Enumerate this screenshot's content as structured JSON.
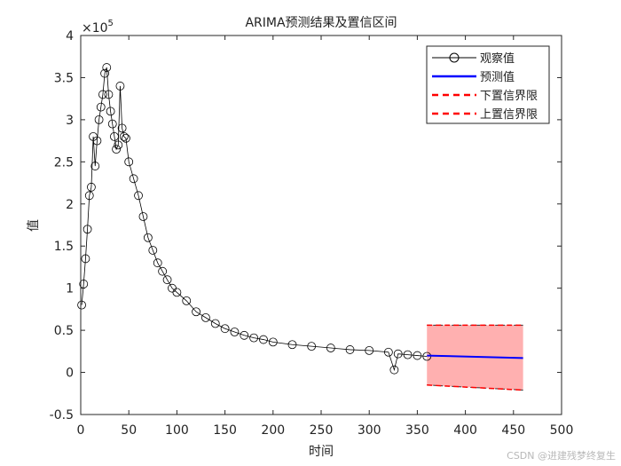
{
  "chart_data": {
    "type": "line",
    "title": "ARIMA预测结果及置信区间",
    "xlabel": "时间",
    "ylabel": "值",
    "y_exponent_label": "×10",
    "y_exponent_power": "5",
    "xlim": [
      0,
      500
    ],
    "ylim": [
      -0.5,
      4
    ],
    "xticks": [
      0,
      50,
      100,
      150,
      200,
      250,
      300,
      350,
      400,
      450,
      500
    ],
    "yticks": [
      -0.5,
      0,
      0.5,
      1,
      1.5,
      2,
      2.5,
      3,
      3.5,
      4
    ],
    "x_tick_labels": [
      "0",
      "50",
      "100",
      "150",
      "200",
      "250",
      "300",
      "350",
      "400",
      "450",
      "500"
    ],
    "y_tick_labels": [
      "-0.5",
      "0",
      "0.5",
      "1",
      "1.5",
      "2",
      "2.5",
      "3",
      "3.5",
      "4"
    ],
    "y_units_note": "y values in units of 10^5",
    "grid": false,
    "legend_position": "top-right",
    "legend": [
      {
        "label": "观察值",
        "style": "black-line-circle"
      },
      {
        "label": "预测值",
        "style": "blue-solid"
      },
      {
        "label": "下置信界限",
        "style": "red-dashed"
      },
      {
        "label": "上置信界限",
        "style": "red-dashed"
      }
    ],
    "series": [
      {
        "name": "观察值",
        "color": "#000000",
        "marker": "circle",
        "x": [
          1,
          3,
          5,
          7,
          9,
          11,
          13,
          15,
          17,
          19,
          21,
          23,
          25,
          27,
          29,
          31,
          33,
          35,
          37,
          39,
          41,
          43,
          45,
          47,
          50,
          55,
          60,
          65,
          70,
          75,
          80,
          85,
          90,
          95,
          100,
          110,
          120,
          130,
          140,
          150,
          160,
          170,
          180,
          190,
          200,
          220,
          240,
          260,
          280,
          300,
          320,
          326,
          330,
          340,
          350,
          360
        ],
        "y": [
          0.8,
          1.05,
          1.35,
          1.7,
          2.1,
          2.2,
          2.8,
          2.45,
          2.75,
          3.0,
          3.15,
          3.3,
          3.55,
          3.62,
          3.3,
          3.1,
          2.95,
          2.8,
          2.65,
          2.7,
          3.4,
          2.9,
          2.8,
          2.78,
          2.5,
          2.3,
          2.1,
          1.85,
          1.6,
          1.45,
          1.3,
          1.2,
          1.1,
          1.0,
          0.95,
          0.85,
          0.72,
          0.65,
          0.58,
          0.52,
          0.48,
          0.44,
          0.41,
          0.39,
          0.36,
          0.33,
          0.31,
          0.29,
          0.27,
          0.26,
          0.24,
          0.03,
          0.22,
          0.21,
          0.2,
          0.19
        ]
      },
      {
        "name": "预测值",
        "color": "#0000ff",
        "x": [
          360,
          460
        ],
        "y": [
          0.2,
          0.17
        ]
      },
      {
        "name": "下置信界限",
        "color": "#ff0000",
        "x": [
          360,
          460
        ],
        "y": [
          -0.15,
          -0.21
        ]
      },
      {
        "name": "上置信界限",
        "color": "#ff0000",
        "x": [
          360,
          460
        ],
        "y": [
          0.56,
          0.56
        ]
      }
    ],
    "confidence_band_fill": "#ffb0b0"
  },
  "watermark": "CSDN @进建残梦终复生"
}
